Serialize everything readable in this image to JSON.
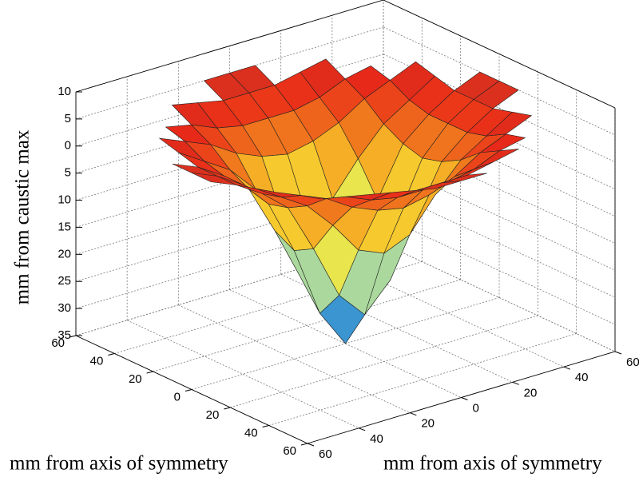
{
  "chart_data": {
    "type": "surface",
    "xlabel": "mm from axis of symmetry",
    "ylabel": "mm from axis of symmetry",
    "zlabel": "mm from caustic max",
    "x": [
      -60,
      -50,
      -40,
      -30,
      -20,
      -10,
      0,
      10,
      20,
      30,
      40,
      50,
      60
    ],
    "y": [
      -60,
      -50,
      -40,
      -30,
      -20,
      -10,
      0,
      10,
      20,
      30,
      40,
      50,
      60
    ],
    "z": [
      [
        null,
        null,
        null,
        null,
        null,
        5,
        5,
        5,
        null,
        null,
        null,
        null,
        null
      ],
      [
        null,
        null,
        null,
        5,
        4,
        3,
        3,
        3,
        4,
        5,
        null,
        null,
        null
      ],
      [
        null,
        null,
        4,
        3,
        1,
        0,
        0,
        0,
        1,
        3,
        4,
        null,
        null
      ],
      [
        null,
        5,
        3,
        1,
        -2,
        -4,
        -5,
        -4,
        -2,
        1,
        3,
        5,
        null
      ],
      [
        null,
        4,
        1,
        -2,
        -7,
        -13,
        -15,
        -13,
        -7,
        -2,
        1,
        4,
        null
      ],
      [
        5,
        3,
        0,
        -4,
        -13,
        -23,
        -28,
        -23,
        -13,
        -4,
        0,
        3,
        5
      ],
      [
        5,
        3,
        0,
        -5,
        -15,
        -28,
        -35,
        -28,
        -15,
        -5,
        0,
        3,
        5
      ],
      [
        5,
        3,
        0,
        -4,
        -13,
        -23,
        -28,
        -23,
        -13,
        -4,
        0,
        3,
        5
      ],
      [
        null,
        4,
        1,
        -2,
        -7,
        -13,
        -15,
        -13,
        -7,
        -2,
        1,
        4,
        null
      ],
      [
        null,
        5,
        3,
        1,
        -2,
        -4,
        -5,
        -4,
        -2,
        1,
        3,
        5,
        null
      ],
      [
        null,
        null,
        4,
        3,
        1,
        0,
        0,
        0,
        1,
        3,
        4,
        null,
        null
      ],
      [
        null,
        null,
        null,
        5,
        4,
        3,
        3,
        3,
        4,
        5,
        null,
        null,
        null
      ],
      [
        null,
        null,
        null,
        null,
        null,
        5,
        5,
        5,
        null,
        null,
        null,
        null,
        null
      ]
    ],
    "xlim": [
      -60,
      60
    ],
    "ylim": [
      -60,
      60
    ],
    "zlim": [
      -35,
      10
    ],
    "xticks": [
      {
        "value": -60,
        "label": "60"
      },
      {
        "value": -40,
        "label": "40"
      },
      {
        "value": -20,
        "label": "20"
      },
      0,
      20,
      40,
      60
    ],
    "yticks": [
      {
        "value": -60,
        "label": "60"
      },
      {
        "value": -40,
        "label": "40"
      },
      {
        "value": -20,
        "label": "20"
      },
      0,
      20,
      40,
      60
    ],
    "zticks": [
      10,
      5,
      0,
      {
        "value": -5,
        "label": "5"
      },
      {
        "value": -10,
        "label": "10"
      },
      {
        "value": -15,
        "label": "15"
      },
      {
        "value": -20,
        "label": "20"
      },
      {
        "value": -25,
        "label": "25"
      },
      {
        "value": -30,
        "label": "30"
      },
      {
        "value": -35,
        "label": "35"
      }
    ],
    "grid": true,
    "colors": [
      "#1a4fa0",
      "#3fa0d8",
      "#a8d8a0",
      "#f8e838",
      "#f4a020",
      "#e82818",
      "#a85038"
    ]
  }
}
